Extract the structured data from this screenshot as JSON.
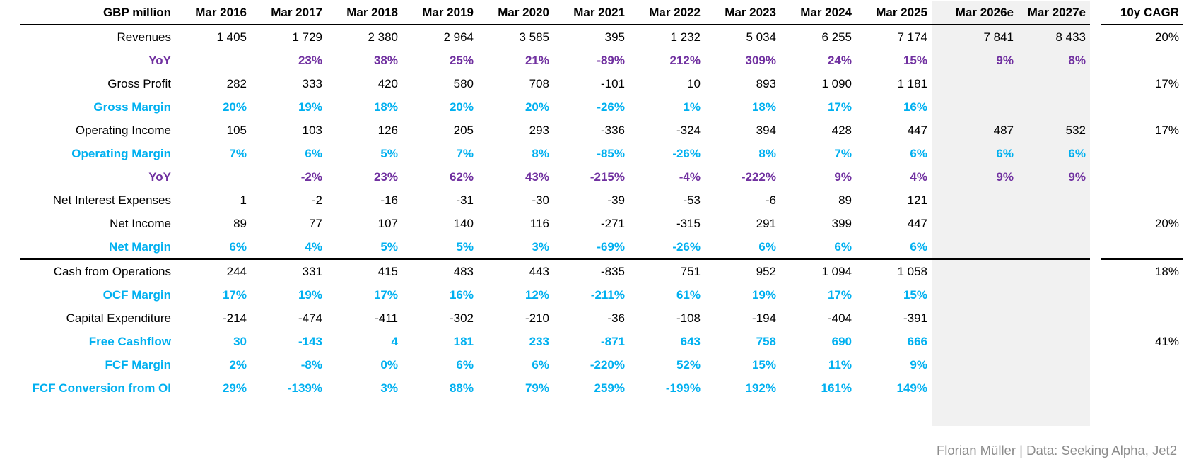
{
  "table": {
    "unit_label": "GBP million",
    "columns": [
      "Mar 2016",
      "Mar 2017",
      "Mar 2018",
      "Mar 2019",
      "Mar 2020",
      "Mar 2021",
      "Mar 2022",
      "Mar 2023",
      "Mar 2024",
      "Mar 2025",
      "Mar 2026e",
      "Mar 2027e"
    ],
    "forecast_columns": [
      "Mar 2026e",
      "Mar 2027e"
    ],
    "cagr_column": "10y CAGR",
    "rows": [
      {
        "label": "Revenues",
        "style": "plain",
        "values": [
          "1 405",
          "1 729",
          "2 380",
          "2 964",
          "3 585",
          "395",
          "1 232",
          "5 034",
          "6 255",
          "7 174",
          "7 841",
          "8 433"
        ],
        "cagr": "20%"
      },
      {
        "label": "YoY",
        "style": "yoy",
        "values": [
          "",
          "23%",
          "38%",
          "25%",
          "21%",
          "-89%",
          "212%",
          "309%",
          "24%",
          "15%",
          "9%",
          "8%"
        ],
        "cagr": ""
      },
      {
        "label": "Gross Profit",
        "style": "plain",
        "values": [
          "282",
          "333",
          "420",
          "580",
          "708",
          "-101",
          "10",
          "893",
          "1 090",
          "1 181",
          "",
          ""
        ],
        "cagr": "17%"
      },
      {
        "label": "Gross Margin",
        "style": "margin",
        "values": [
          "20%",
          "19%",
          "18%",
          "20%",
          "20%",
          "-26%",
          "1%",
          "18%",
          "17%",
          "16%",
          "",
          ""
        ],
        "cagr": ""
      },
      {
        "label": "Operating Income",
        "style": "plain",
        "values": [
          "105",
          "103",
          "126",
          "205",
          "293",
          "-336",
          "-324",
          "394",
          "428",
          "447",
          "487",
          "532"
        ],
        "cagr": "17%"
      },
      {
        "label": "Operating Margin",
        "style": "margin",
        "values": [
          "7%",
          "6%",
          "5%",
          "7%",
          "8%",
          "-85%",
          "-26%",
          "8%",
          "7%",
          "6%",
          "6%",
          "6%"
        ],
        "cagr": ""
      },
      {
        "label": "YoY",
        "style": "yoy",
        "values": [
          "",
          "-2%",
          "23%",
          "62%",
          "43%",
          "-215%",
          "-4%",
          "-222%",
          "9%",
          "4%",
          "9%",
          "9%"
        ],
        "cagr": ""
      },
      {
        "label": "Net Interest Expenses",
        "style": "plain",
        "values": [
          "1",
          "-2",
          "-16",
          "-31",
          "-30",
          "-39",
          "-53",
          "-6",
          "89",
          "121",
          "",
          ""
        ],
        "cagr": ""
      },
      {
        "label": "Net Income",
        "style": "plain",
        "values": [
          "89",
          "77",
          "107",
          "140",
          "116",
          "-271",
          "-315",
          "291",
          "399",
          "447",
          "",
          ""
        ],
        "cagr": "20%"
      },
      {
        "label": "Net Margin",
        "style": "margin",
        "values": [
          "6%",
          "4%",
          "5%",
          "5%",
          "3%",
          "-69%",
          "-26%",
          "6%",
          "6%",
          "6%",
          "",
          ""
        ],
        "cagr": ""
      },
      {
        "label": "Cash from Operations",
        "style": "plain",
        "section_start": true,
        "values": [
          "244",
          "331",
          "415",
          "483",
          "443",
          "-835",
          "751",
          "952",
          "1 094",
          "1 058",
          "",
          ""
        ],
        "cagr": "18%"
      },
      {
        "label": "OCF Margin",
        "style": "margin",
        "values": [
          "17%",
          "19%",
          "17%",
          "16%",
          "12%",
          "-211%",
          "61%",
          "19%",
          "17%",
          "15%",
          "",
          ""
        ],
        "cagr": ""
      },
      {
        "label": "Capital Expenditure",
        "style": "plain",
        "values": [
          "-214",
          "-474",
          "-411",
          "-302",
          "-210",
          "-36",
          "-108",
          "-194",
          "-404",
          "-391",
          "",
          ""
        ],
        "cagr": ""
      },
      {
        "label": "Free Cashflow",
        "style": "margin",
        "values": [
          "30",
          "-143",
          "4",
          "181",
          "233",
          "-871",
          "643",
          "758",
          "690",
          "666",
          "",
          ""
        ],
        "cagr": "41%"
      },
      {
        "label": "FCF Margin",
        "style": "margin",
        "values": [
          "2%",
          "-8%",
          "0%",
          "6%",
          "6%",
          "-220%",
          "52%",
          "15%",
          "11%",
          "9%",
          "",
          ""
        ],
        "cagr": ""
      },
      {
        "label": "FCF Conversion from OI",
        "style": "margin",
        "values": [
          "29%",
          "-139%",
          "3%",
          "88%",
          "79%",
          "259%",
          "-199%",
          "192%",
          "161%",
          "149%",
          "",
          ""
        ],
        "cagr": ""
      }
    ]
  },
  "footer": {
    "credit": "Florian Müller | Data: Seeking Alpha, Jet2"
  },
  "colors": {
    "yoy_purple": "#7030A0",
    "margin_cyan": "#00B0F0",
    "forecast_band_gray": "#F1F1F1",
    "footer_gray": "#8C8C8C",
    "text_black": "#000000"
  }
}
